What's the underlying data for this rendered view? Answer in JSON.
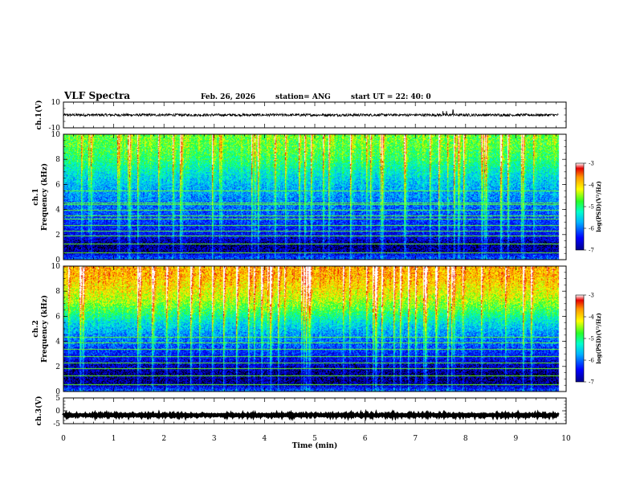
{
  "header": {
    "title": "VLF Spectra",
    "date": "Feb. 26, 2026",
    "station": "station= ANG",
    "start": "start  UT  =   22: 40: 0"
  },
  "chart_data": [
    {
      "type": "line",
      "name": "ch1-voltage",
      "ylabel": "ch.1(V)",
      "xlim": [
        0,
        10
      ],
      "ylim": [
        -10,
        10
      ],
      "yticks": [
        "10",
        "-10"
      ],
      "baseline": 0,
      "noise_amplitude": 1,
      "spikes": [
        {
          "x": 7.55,
          "y": 3
        },
        {
          "x": 7.62,
          "y": 3
        },
        {
          "x": 7.75,
          "y": 4
        }
      ],
      "data_xmax": 9.85
    },
    {
      "type": "heatmap",
      "name": "ch1-spectrogram",
      "ylabel": "ch.1\nFrequency (kHz)",
      "xlim": [
        0,
        10
      ],
      "ylim": [
        0,
        10
      ],
      "yticks": [
        "0",
        "2",
        "4",
        "6",
        "8",
        "10"
      ],
      "data_xmax": 9.85,
      "colorbar": {
        "label": "log(PSD)(V²/Hz)",
        "range": [
          -7,
          -3
        ],
        "ticks": [
          "-3",
          "-4",
          "-5",
          "-6",
          "-7"
        ]
      },
      "profile": [
        {
          "f": 0.0,
          "v": -6.0
        },
        {
          "f": 0.3,
          "v": -6.3
        },
        {
          "f": 0.6,
          "v": -6.8
        },
        {
          "f": 1.2,
          "v": -6.9
        },
        {
          "f": 2.0,
          "v": -6.5
        },
        {
          "f": 3.0,
          "v": -6.3
        },
        {
          "f": 4.0,
          "v": -6.1
        },
        {
          "f": 5.0,
          "v": -5.9
        },
        {
          "f": 6.0,
          "v": -5.7
        },
        {
          "f": 7.0,
          "v": -5.4
        },
        {
          "f": 8.0,
          "v": -5.0
        },
        {
          "f": 9.0,
          "v": -4.8
        },
        {
          "f": 10.0,
          "v": -4.7
        }
      ],
      "lines_khz": [
        0.55,
        1.3,
        1.9,
        2.3,
        2.75,
        3.3,
        3.55,
        3.95,
        4.4,
        4.55,
        5.5
      ]
    },
    {
      "type": "heatmap",
      "name": "ch2-spectrogram",
      "ylabel": "ch.2\nFrequency (kHz)",
      "xlim": [
        0,
        10
      ],
      "ylim": [
        0,
        10
      ],
      "yticks": [
        "0",
        "2",
        "4",
        "6",
        "8",
        "10"
      ],
      "data_xmax": 9.85,
      "colorbar": {
        "label": "log(PSD)(V²/Hz)",
        "range": [
          -7,
          -3
        ],
        "ticks": [
          "-3",
          "-4",
          "-5",
          "-6",
          "-7"
        ]
      },
      "profile": [
        {
          "f": 0.0,
          "v": -6.0
        },
        {
          "f": 0.3,
          "v": -6.4
        },
        {
          "f": 0.6,
          "v": -6.9
        },
        {
          "f": 1.5,
          "v": -6.9
        },
        {
          "f": 2.5,
          "v": -6.6
        },
        {
          "f": 3.5,
          "v": -6.2
        },
        {
          "f": 4.5,
          "v": -5.9
        },
        {
          "f": 5.5,
          "v": -5.5
        },
        {
          "f": 6.5,
          "v": -4.9
        },
        {
          "f": 7.5,
          "v": -4.4
        },
        {
          "f": 8.5,
          "v": -4.1
        },
        {
          "f": 9.3,
          "v": -3.9
        },
        {
          "f": 10.0,
          "v": -3.9
        }
      ],
      "lines_khz": [
        0.55,
        1.3,
        1.85,
        2.3,
        2.85,
        3.4,
        3.9,
        4.35
      ]
    },
    {
      "type": "line",
      "name": "ch3-voltage",
      "ylabel": "ch.3(V)",
      "xlim": [
        0,
        10
      ],
      "ylim": [
        -5,
        5
      ],
      "yticks": [
        "5",
        "0",
        "-5"
      ],
      "baseline": -1.7,
      "noise_amplitude": 0.25,
      "spikes": [],
      "data_xmax": 9.85
    }
  ],
  "xaxis": {
    "label": "Time (min)",
    "ticks": [
      "0",
      "1",
      "2",
      "3",
      "4",
      "5",
      "6",
      "7",
      "8",
      "9",
      "10"
    ]
  }
}
